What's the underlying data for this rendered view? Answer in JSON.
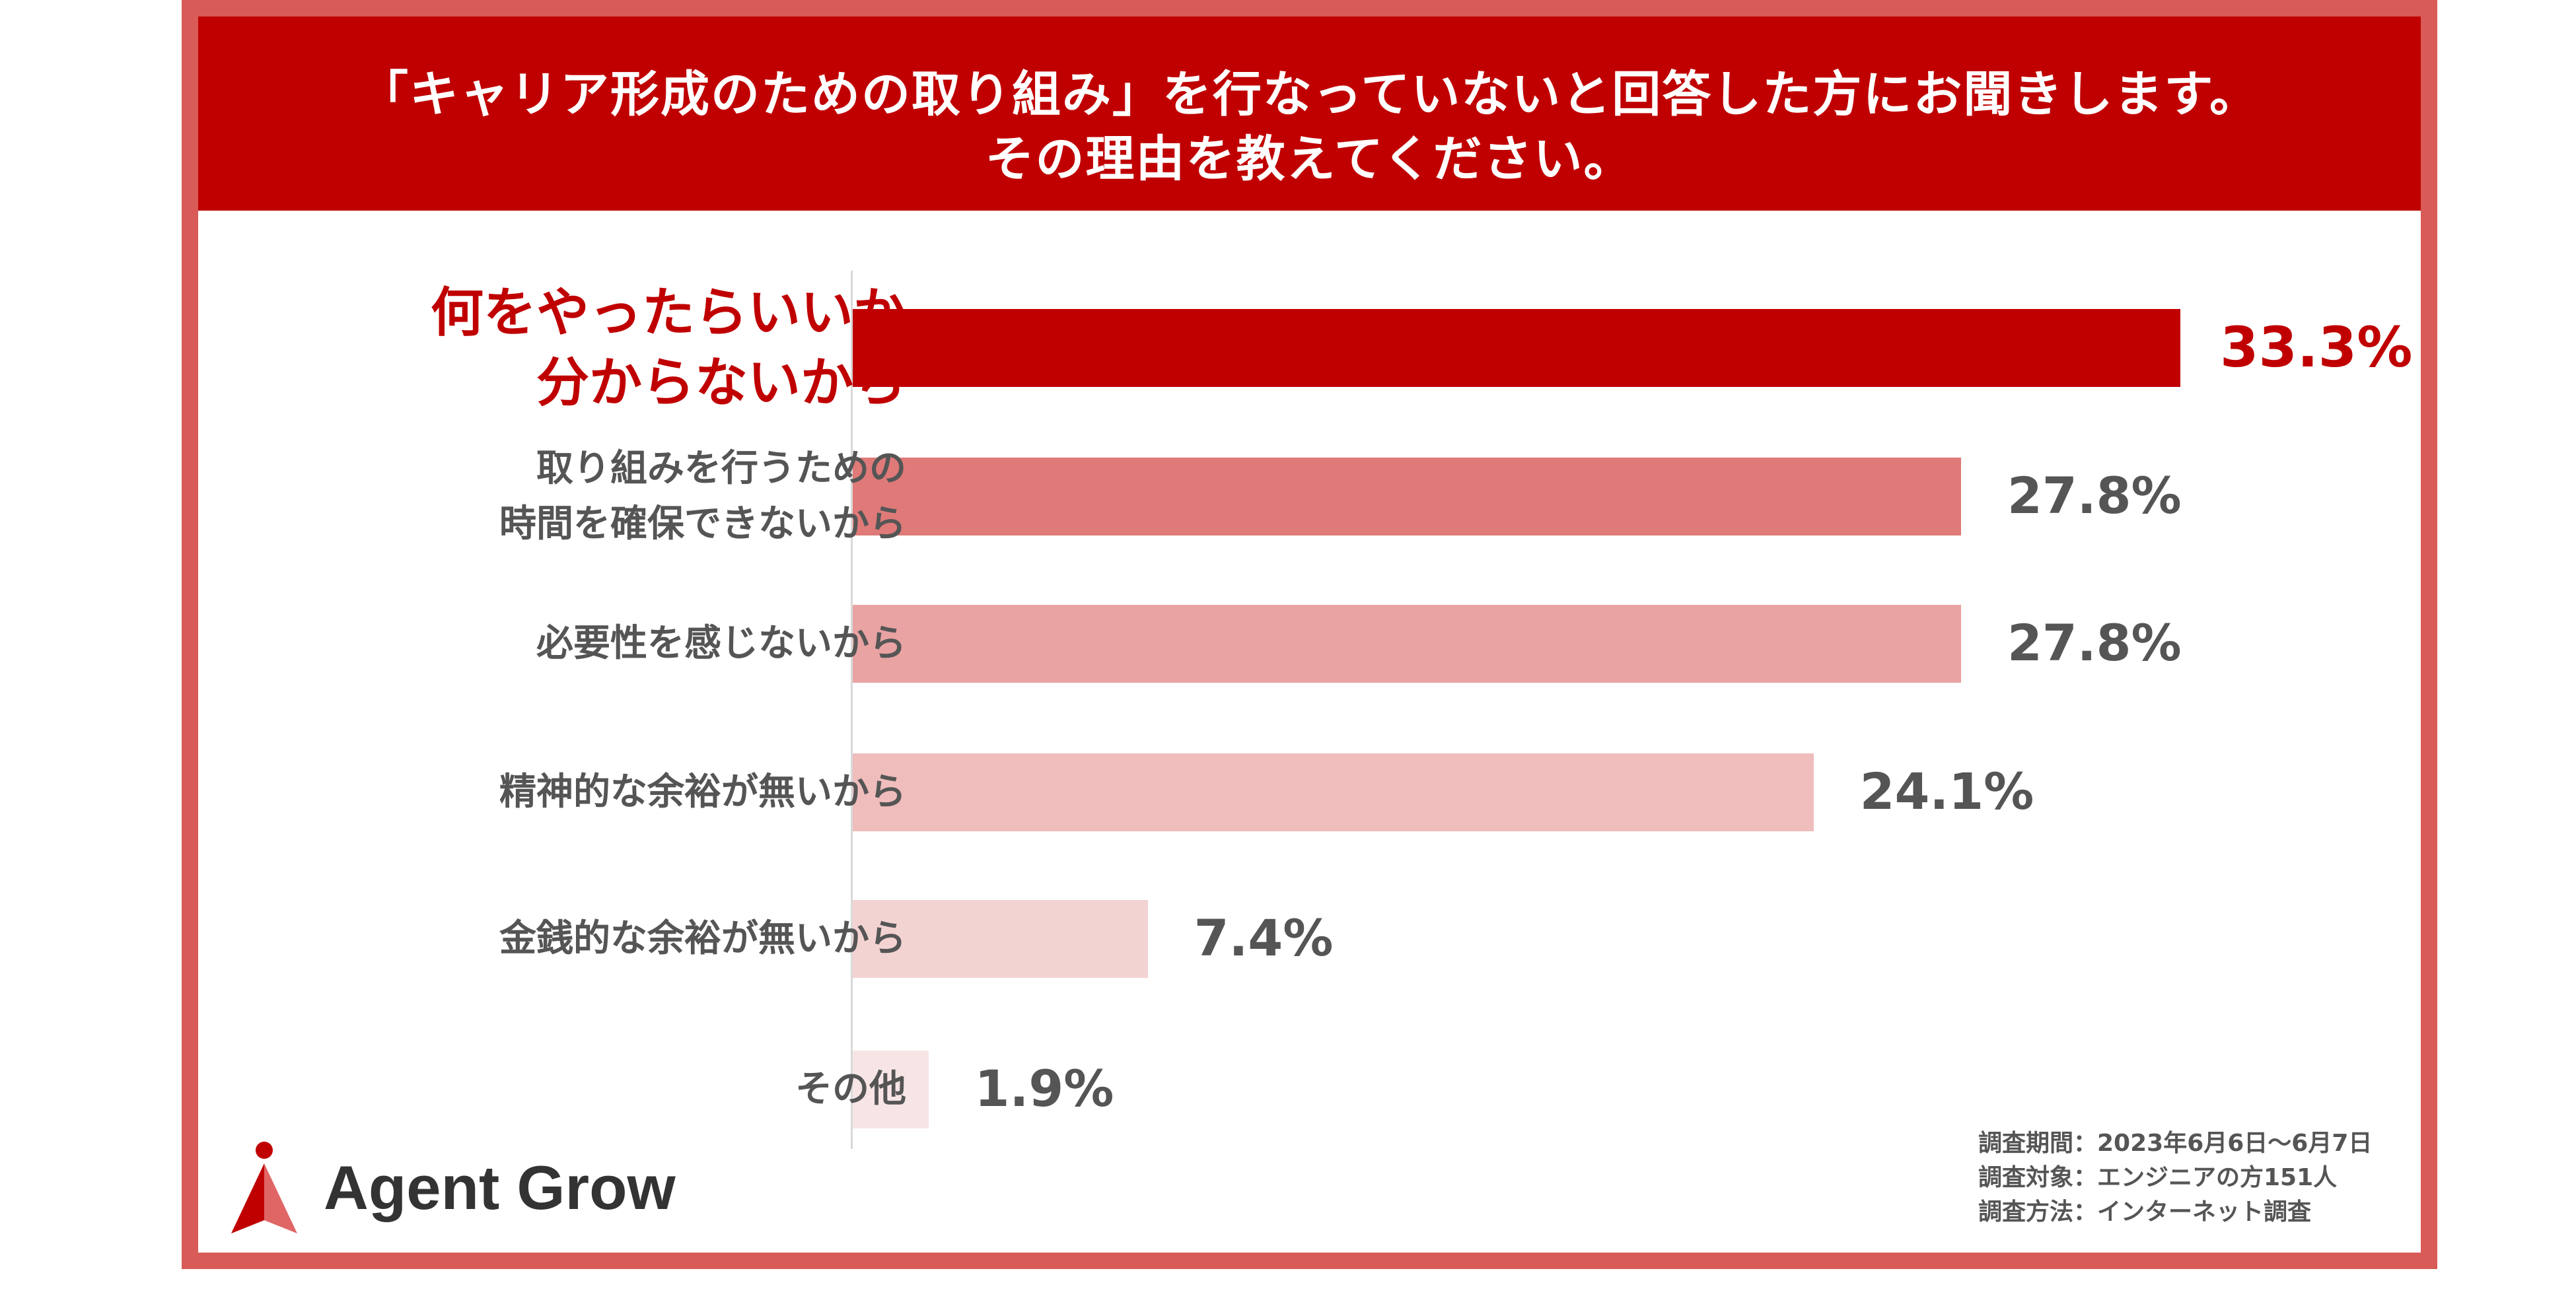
{
  "header": {
    "line1": "「キャリア形成のための取り組み」を行なっていないと回答した方にお聞きします。",
    "line2": "その理由を教えてください。"
  },
  "chart_data": {
    "type": "bar",
    "orientation": "horizontal",
    "categories": [
      [
        "何をやったらいいか",
        "分からないから"
      ],
      [
        "取り組みを行うための",
        "時間を確保できないから"
      ],
      [
        "必要性を感じないから"
      ],
      [
        "精神的な余裕が無いから"
      ],
      [
        "金銭的な余裕が無いから"
      ],
      [
        "その他"
      ]
    ],
    "values": [
      33.3,
      27.8,
      27.8,
      24.1,
      7.4,
      1.9
    ],
    "value_labels": [
      "33.3%",
      "27.8%",
      "27.8%",
      "24.1%",
      "7.4%",
      "1.9%"
    ],
    "colors": [
      "#c00000",
      "#df7a79",
      "#e8a3a2",
      "#efbdbc",
      "#f3d3d2",
      "#f7e5e5"
    ],
    "highlight_index": 0,
    "xlim": [
      0,
      40
    ],
    "grid": false,
    "legend": "none"
  },
  "brand": {
    "name": "Agent Grow",
    "accent": "#c00000",
    "accent_light": "#e06666"
  },
  "notes": [
    "調査期間：2023年6月6日〜6月7日",
    "調査対象：エンジニアの方151人",
    "調査方法：インターネット調査"
  ]
}
